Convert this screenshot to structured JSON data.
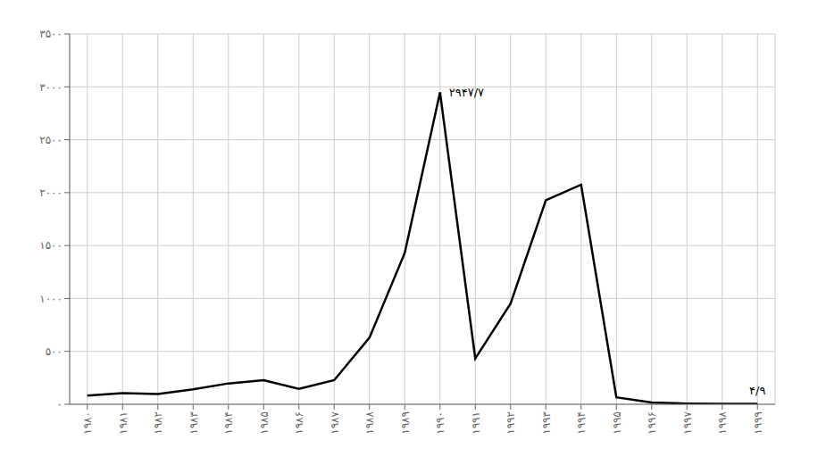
{
  "chart_data": {
    "type": "line",
    "x": [
      1980,
      1981,
      1982,
      1983,
      1984,
      1985,
      1986,
      1987,
      1988,
      1989,
      1990,
      1991,
      1992,
      1993,
      1994,
      1995,
      1996,
      1997,
      1998,
      1999
    ],
    "values": [
      82,
      106,
      98,
      142,
      197,
      227,
      145,
      228,
      629,
      1430,
      2947.7,
      432,
      951,
      1928,
      2075,
      66,
      16,
      6.9,
      3.2,
      4.9
    ],
    "color": "#000000",
    "xlim": [
      1979.5,
      1999.5
    ],
    "xticks": [
      {
        "value": 1980,
        "label": "۱۹۸۰"
      },
      {
        "value": 1981,
        "label": "۱۹۸۱"
      },
      {
        "value": 1982,
        "label": "۱۹۸۲"
      },
      {
        "value": 1983,
        "label": "۱۹۸۳"
      },
      {
        "value": 1984,
        "label": "۱۹۸۴"
      },
      {
        "value": 1985,
        "label": "۱۹۸۵"
      },
      {
        "value": 1986,
        "label": "۱۹۸۶"
      },
      {
        "value": 1987,
        "label": "۱۹۸۷"
      },
      {
        "value": 1988,
        "label": "۱۹۸۸"
      },
      {
        "value": 1989,
        "label": "۱۹۸۹"
      },
      {
        "value": 1990,
        "label": "۱۹۹۰"
      },
      {
        "value": 1991,
        "label": "۱۹۹۱"
      },
      {
        "value": 1992,
        "label": "۱۹۹۲"
      },
      {
        "value": 1993,
        "label": "۱۹۹۳"
      },
      {
        "value": 1994,
        "label": "۱۹۹۴"
      },
      {
        "value": 1995,
        "label": "۱۹۹۵"
      },
      {
        "value": 1996,
        "label": "۱۹۹۶"
      },
      {
        "value": 1997,
        "label": "۱۹۹۷"
      },
      {
        "value": 1998,
        "label": "۱۹۹۸"
      },
      {
        "value": 1999,
        "label": "۱۹۹۹"
      }
    ],
    "ylim": [
      0,
      3500
    ],
    "yticks": [
      {
        "value": 0,
        "label": "۰"
      },
      {
        "value": 500,
        "label": "۵۰۰"
      },
      {
        "value": 1000,
        "label": "۱۰۰۰"
      },
      {
        "value": 1500,
        "label": "۱۵۰۰"
      },
      {
        "value": 2000,
        "label": "۲۰۰۰"
      },
      {
        "value": 2500,
        "label": "۲۵۰۰"
      },
      {
        "value": 3000,
        "label": "۳۰۰۰"
      },
      {
        "value": 3500,
        "label": "۳۵۰۰"
      }
    ],
    "grid": true,
    "annotations": [
      {
        "text": "۲۹۴۷/۷",
        "x": 1990,
        "y": 2947.7
      },
      {
        "text": "۴/۹",
        "x": 1999,
        "y": 4.9
      }
    ]
  }
}
